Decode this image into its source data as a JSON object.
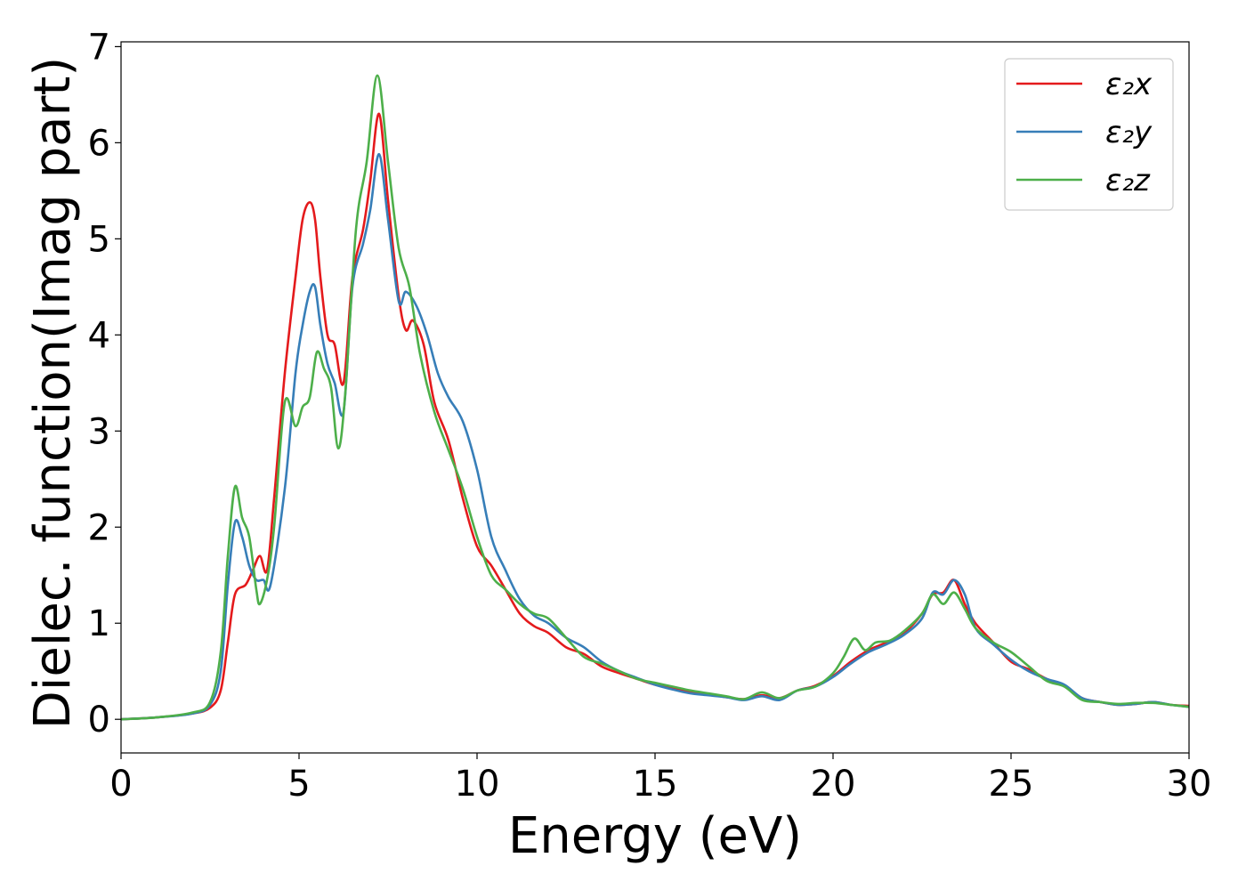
{
  "chart_data": {
    "type": "line",
    "title": "",
    "xlabel": "Energy (eV)",
    "ylabel": "Dielec. function(Imag part)",
    "xlim": [
      0,
      30
    ],
    "ylim": [
      -0.35,
      7.05
    ],
    "xticks": [
      0,
      5,
      10,
      15,
      20,
      25,
      30
    ],
    "yticks": [
      0,
      1,
      2,
      3,
      4,
      5,
      6,
      7
    ],
    "grid": false,
    "legend_position": "top-right",
    "series": [
      {
        "name": "ε₂x",
        "color": "#e41a1c",
        "x": [
          0,
          1,
          2,
          2.5,
          2.8,
          3.0,
          3.2,
          3.5,
          3.7,
          3.9,
          4.1,
          4.3,
          4.6,
          4.9,
          5.1,
          5.3,
          5.45,
          5.6,
          5.8,
          6.0,
          6.25,
          6.5,
          6.8,
          7.0,
          7.25,
          7.5,
          7.8,
          8.0,
          8.2,
          8.5,
          8.8,
          9.2,
          9.6,
          10.0,
          10.4,
          10.8,
          11.2,
          11.6,
          12.0,
          12.5,
          13.0,
          13.5,
          14.0,
          14.5,
          15.0,
          15.5,
          16.0,
          16.5,
          17.0,
          17.5,
          18.0,
          18.5,
          19.0,
          19.5,
          20.0,
          20.5,
          21.0,
          21.5,
          22.0,
          22.5,
          22.8,
          23.1,
          23.4,
          23.7,
          24.0,
          24.5,
          25.0,
          25.5,
          26.0,
          26.5,
          27.0,
          27.5,
          28.0,
          28.5,
          29.0,
          29.5,
          30.0
        ],
        "y": [
          0.0,
          0.02,
          0.06,
          0.12,
          0.3,
          0.8,
          1.3,
          1.4,
          1.55,
          1.7,
          1.55,
          2.3,
          3.6,
          4.6,
          5.2,
          5.38,
          5.2,
          4.6,
          4.0,
          3.9,
          3.5,
          4.6,
          5.1,
          5.6,
          6.3,
          5.4,
          4.4,
          4.05,
          4.15,
          3.9,
          3.3,
          2.9,
          2.3,
          1.8,
          1.6,
          1.35,
          1.1,
          0.97,
          0.9,
          0.75,
          0.68,
          0.55,
          0.48,
          0.42,
          0.36,
          0.32,
          0.28,
          0.26,
          0.23,
          0.21,
          0.25,
          0.22,
          0.3,
          0.35,
          0.45,
          0.6,
          0.72,
          0.8,
          0.9,
          1.1,
          1.3,
          1.32,
          1.45,
          1.2,
          1.0,
          0.8,
          0.6,
          0.52,
          0.42,
          0.35,
          0.22,
          0.18,
          0.15,
          0.16,
          0.18,
          0.15,
          0.14
        ]
      },
      {
        "name": "ε₂y",
        "color": "#377eb8",
        "x": [
          0,
          1,
          2,
          2.5,
          2.8,
          3.0,
          3.2,
          3.4,
          3.6,
          3.8,
          4.0,
          4.2,
          4.6,
          4.9,
          5.1,
          5.3,
          5.45,
          5.6,
          5.8,
          6.0,
          6.25,
          6.5,
          6.8,
          7.0,
          7.25,
          7.5,
          7.8,
          8.0,
          8.3,
          8.6,
          8.9,
          9.2,
          9.6,
          10.0,
          10.4,
          10.8,
          11.2,
          11.6,
          12.0,
          12.5,
          13.0,
          13.5,
          14.0,
          14.5,
          15.0,
          15.5,
          16.0,
          16.5,
          17.0,
          17.5,
          18.0,
          18.5,
          19.0,
          19.5,
          20.0,
          20.5,
          21.0,
          21.5,
          22.0,
          22.5,
          22.8,
          23.1,
          23.4,
          23.7,
          24.0,
          24.5,
          25.0,
          25.5,
          26.0,
          26.5,
          27.0,
          27.5,
          28.0,
          28.5,
          29.0,
          29.5,
          30.0
        ],
        "y": [
          0.0,
          0.02,
          0.06,
          0.15,
          0.5,
          1.4,
          2.05,
          1.9,
          1.6,
          1.45,
          1.45,
          1.4,
          2.4,
          3.6,
          4.1,
          4.45,
          4.5,
          4.1,
          3.7,
          3.5,
          3.2,
          4.5,
          4.95,
          5.3,
          5.88,
          5.2,
          4.35,
          4.45,
          4.3,
          4.0,
          3.6,
          3.35,
          3.1,
          2.6,
          1.9,
          1.55,
          1.25,
          1.08,
          1.0,
          0.85,
          0.75,
          0.6,
          0.5,
          0.43,
          0.36,
          0.31,
          0.27,
          0.25,
          0.23,
          0.2,
          0.24,
          0.2,
          0.3,
          0.34,
          0.44,
          0.58,
          0.7,
          0.78,
          0.88,
          1.05,
          1.32,
          1.3,
          1.45,
          1.3,
          0.95,
          0.78,
          0.62,
          0.5,
          0.42,
          0.36,
          0.22,
          0.18,
          0.15,
          0.16,
          0.18,
          0.15,
          0.13
        ]
      },
      {
        "name": "ε₂z",
        "color": "#4daf4a",
        "x": [
          0,
          1,
          2,
          2.5,
          2.8,
          3.0,
          3.2,
          3.4,
          3.6,
          3.8,
          3.9,
          4.1,
          4.3,
          4.6,
          4.9,
          5.1,
          5.3,
          5.5,
          5.7,
          5.9,
          6.1,
          6.3,
          6.6,
          6.9,
          7.2,
          7.5,
          7.8,
          8.1,
          8.4,
          8.8,
          9.2,
          9.6,
          10.0,
          10.4,
          10.8,
          11.2,
          11.6,
          12.0,
          12.5,
          13.0,
          13.5,
          14.0,
          14.5,
          15.0,
          15.5,
          16.0,
          16.5,
          17.0,
          17.5,
          18.0,
          18.5,
          19.0,
          19.5,
          20.0,
          20.3,
          20.6,
          20.9,
          21.2,
          21.6,
          22.0,
          22.5,
          22.8,
          23.1,
          23.4,
          23.7,
          24.0,
          24.5,
          25.0,
          25.5,
          26.0,
          26.5,
          27.0,
          27.5,
          28.0,
          28.5,
          29.0,
          29.5,
          30.0
        ],
        "y": [
          0.0,
          0.02,
          0.07,
          0.18,
          0.7,
          1.7,
          2.42,
          2.1,
          1.9,
          1.35,
          1.2,
          1.45,
          2.0,
          3.3,
          3.05,
          3.25,
          3.35,
          3.82,
          3.65,
          3.45,
          2.82,
          3.4,
          5.1,
          5.8,
          6.7,
          5.8,
          4.9,
          4.5,
          3.8,
          3.2,
          2.8,
          2.4,
          1.9,
          1.5,
          1.35,
          1.2,
          1.1,
          1.05,
          0.85,
          0.65,
          0.58,
          0.5,
          0.42,
          0.38,
          0.34,
          0.3,
          0.27,
          0.24,
          0.21,
          0.28,
          0.22,
          0.3,
          0.34,
          0.48,
          0.65,
          0.84,
          0.72,
          0.8,
          0.82,
          0.92,
          1.1,
          1.3,
          1.2,
          1.32,
          1.15,
          0.95,
          0.8,
          0.7,
          0.55,
          0.4,
          0.34,
          0.2,
          0.18,
          0.16,
          0.17,
          0.17,
          0.15,
          0.13
        ]
      }
    ]
  }
}
